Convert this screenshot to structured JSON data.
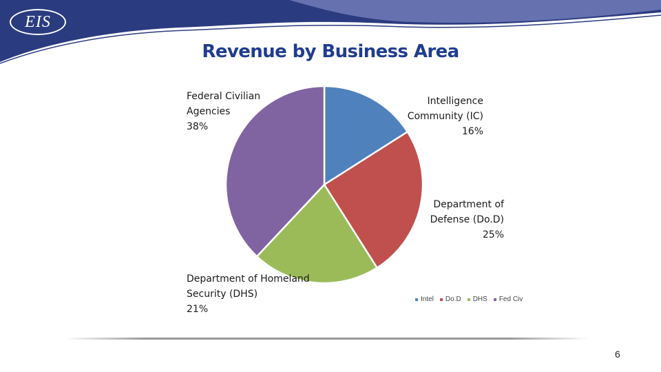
{
  "logo_text": "EIS",
  "page_number": "6",
  "colors": {
    "title": "#1f3c8f",
    "banner_dark": "#2b3b7f",
    "banner_light": "#6671b0"
  },
  "chart_data": {
    "type": "pie",
    "title": "Revenue by Business Area",
    "slices": [
      {
        "label": "Intelligence Community (IC)",
        "legend": "Intel",
        "value": 16,
        "pct_text": "16%",
        "color": "#4f81bd"
      },
      {
        "label": "Department of Defense (Do.D)",
        "legend": "Do.D",
        "value": 25,
        "pct_text": "25%",
        "color": "#c0504d"
      },
      {
        "label": "Department of Homeland Security (DHS)",
        "legend": "DHS",
        "value": 21,
        "pct_text": "21%",
        "color": "#9bbb59"
      },
      {
        "label": "Federal Civilian Agencies",
        "legend": "Fed Civ",
        "value": 38,
        "pct_text": "38%",
        "color": "#8064a2"
      }
    ],
    "legend_position": "bottom-right"
  }
}
